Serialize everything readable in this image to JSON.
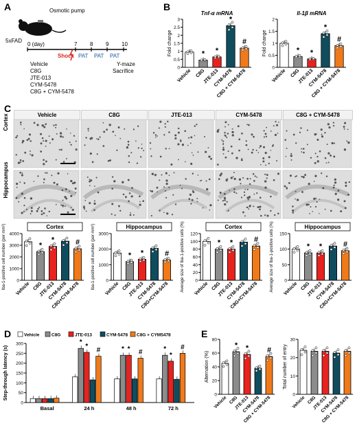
{
  "panel_letters": [
    "A",
    "B",
    "C",
    "D",
    "E"
  ],
  "colors": {
    "vehicle": "#ffffff",
    "c8g": "#8c8c8c",
    "jte": "#e8221e",
    "cym": "#0f4d5e",
    "combo": "#f07a1a",
    "shock": "#d9261c"
  },
  "panelA": {
    "pump_label": "Osmotic pump",
    "mouse_label": "5xFAD",
    "days": [
      "0 (day)",
      "7",
      "8",
      "9",
      "10"
    ],
    "shock": "Shock",
    "pat": [
      "PAT",
      "PAT",
      "PAT"
    ],
    "end_labels": [
      "Y-maze",
      "Sacrifice"
    ],
    "groups": [
      "Vehicle",
      "C8G",
      "JTE-013",
      "CYM-5478",
      "C8G + CYM-5478"
    ]
  },
  "panelC": {
    "headers": [
      "Vehicle",
      "C8G",
      "JTE-013",
      "CYM-5478",
      "C8G + CYM-5478"
    ],
    "rows": [
      "Cortex",
      "Hippocampus"
    ]
  },
  "chart_data": [
    {
      "id": "b1",
      "type": "bar",
      "title": "Tnf-α mRNA",
      "ylabel": "Fold change",
      "ylim": [
        0,
        3
      ],
      "yticks": [
        0,
        0.5,
        1,
        1.5,
        2,
        2.5,
        3
      ],
      "categories": [
        "Vehicle",
        "C8G",
        "JTE-013",
        "CYM-5478",
        "C8G + CYM-5478"
      ],
      "values": [
        0.95,
        0.45,
        0.65,
        2.6,
        1.2
      ],
      "marks": [
        "",
        "*",
        "*",
        "*",
        "#"
      ]
    },
    {
      "id": "b2",
      "type": "bar",
      "title": "Il-1β mRNA",
      "ylabel": "Fold change",
      "ylim": [
        0,
        2
      ],
      "yticks": [
        0,
        0.5,
        1,
        1.5,
        2
      ],
      "categories": [
        "Vehicle",
        "C8G",
        "JTE-013",
        "CYM-5478",
        "C8G + CYM-5478"
      ],
      "values": [
        1.0,
        0.45,
        0.35,
        1.4,
        0.9
      ],
      "marks": [
        "",
        "*",
        "*",
        "*",
        "#"
      ]
    },
    {
      "id": "c1",
      "type": "bar",
      "title": "Cortex",
      "ylabel": "Iba-1-positive cell number (per mm²)",
      "ylim": [
        0,
        4000
      ],
      "yticks": [
        0,
        1000,
        2000,
        3000,
        4000
      ],
      "categories": [
        "Vehicle",
        "C8G",
        "JTE-013",
        "CYM-5478",
        "C8G+CYM-5478"
      ],
      "values": [
        3300,
        2450,
        2900,
        3350,
        2700
      ],
      "marks": [
        "",
        "*",
        "*",
        "",
        "#"
      ]
    },
    {
      "id": "c2",
      "type": "bar",
      "title": "Hippocampus",
      "ylabel": "Iba-1-positive cell number (per mm²)",
      "ylim": [
        0,
        3000
      ],
      "yticks": [
        0,
        1000,
        2000,
        3000
      ],
      "categories": [
        "Vehicle",
        "C8G",
        "JTE-013",
        "CYM-5478",
        "C8G+CYM-5478"
      ],
      "values": [
        1750,
        1200,
        1350,
        2050,
        1300
      ],
      "marks": [
        "",
        "*",
        "*",
        "",
        "#"
      ]
    },
    {
      "id": "c3",
      "type": "bar",
      "title": "Cortex",
      "ylabel": "Average size of Iba-1-positive cells (%)",
      "ylim": [
        0,
        120
      ],
      "yticks": [
        0,
        20,
        40,
        60,
        80,
        100,
        120
      ],
      "categories": [
        "Vehicle",
        "C8G",
        "JTE-013",
        "CYM-5478",
        "C8G+CYM-5478"
      ],
      "values": [
        100,
        80,
        80,
        98,
        88
      ],
      "marks": [
        "",
        "*",
        "*",
        "",
        "#"
      ]
    },
    {
      "id": "c4",
      "type": "bar",
      "title": "Hippocampus",
      "ylabel": "Average size of Iba-1-positive cells (%)",
      "ylim": [
        0,
        150
      ],
      "yticks": [
        0,
        50,
        100,
        150
      ],
      "categories": [
        "Vehicle",
        "C8G",
        "JTE-013",
        "CYM-5478",
        "C8G+CYM-5478"
      ],
      "values": [
        100,
        88,
        88,
        110,
        95
      ],
      "marks": [
        "",
        "*",
        "*",
        "",
        "#"
      ]
    },
    {
      "id": "d",
      "type": "bar",
      "ylabel": "Step-through latency (s)",
      "ylim": [
        0,
        300
      ],
      "yticks": [
        0,
        50,
        100,
        150,
        200,
        250,
        300
      ],
      "categories": [
        "Basal",
        "24 h",
        "48 h",
        "72 h"
      ],
      "legend": [
        "Vehicle",
        "C8G",
        "JTE-013",
        "CYM-5478",
        "C8G + CYM5478"
      ],
      "series": [
        {
          "name": "Vehicle",
          "values": [
            20,
            130,
            120,
            120
          ]
        },
        {
          "name": "C8G",
          "values": [
            20,
            275,
            240,
            240
          ]
        },
        {
          "name": "JTE-013",
          "values": [
            20,
            255,
            240,
            210
          ]
        },
        {
          "name": "CYM-5478",
          "values": [
            20,
            115,
            120,
            118
          ]
        },
        {
          "name": "C8G + CYM5478",
          "values": [
            22,
            235,
            225,
            250
          ]
        }
      ],
      "marks": [
        [
          "",
          "",
          "",
          "",
          ""
        ],
        [
          "",
          "*",
          "*",
          "",
          "#"
        ],
        [
          "",
          "*",
          "*",
          "",
          "#"
        ],
        [
          "",
          "*",
          "*",
          "",
          "#"
        ]
      ]
    },
    {
      "id": "e1",
      "type": "bar",
      "ylabel": "Alternation (%)",
      "ylim": [
        0,
        80
      ],
      "yticks": [
        0,
        20,
        40,
        60,
        80
      ],
      "categories": [
        "Vehicle",
        "C8G",
        "JTE-013",
        "CYM-5478",
        "C8G + CYM-5478"
      ],
      "values": [
        45,
        62,
        58,
        38,
        55
      ],
      "marks": [
        "",
        "*",
        "*",
        "",
        "#"
      ]
    },
    {
      "id": "e2",
      "type": "bar",
      "ylabel": "Total number of entry",
      "ylim": [
        0,
        30
      ],
      "yticks": [
        0,
        10,
        20,
        30
      ],
      "categories": [
        "Vehicle",
        "C8G",
        "JTE-013",
        "CYM-5478",
        "C8G + CYM-5478"
      ],
      "values": [
        24,
        23.5,
        23.5,
        22.5,
        23.5
      ],
      "marks": [
        "",
        "",
        "",
        "",
        ""
      ]
    }
  ]
}
